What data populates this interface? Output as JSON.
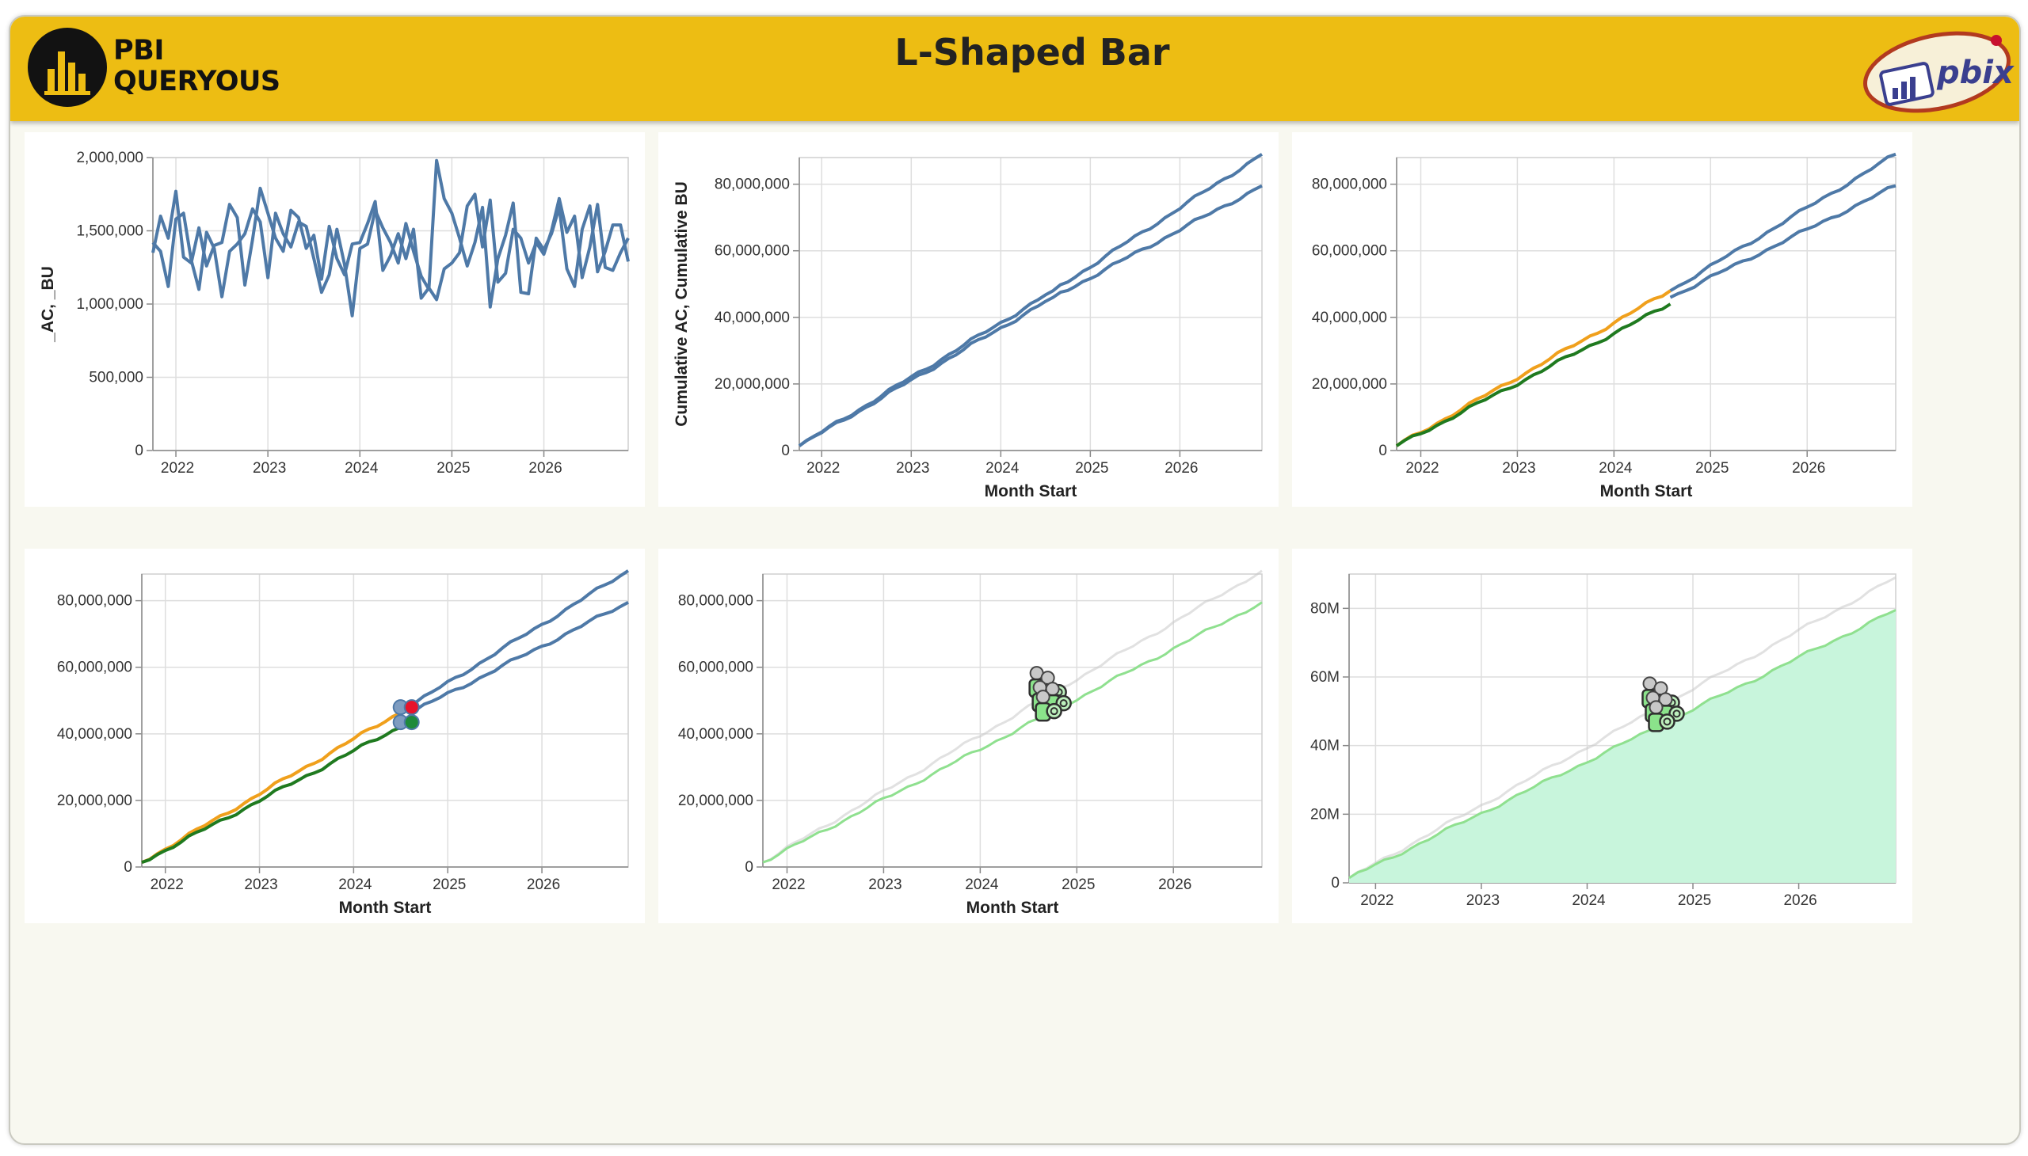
{
  "header": {
    "logo_line1": "PBI",
    "logo_line2": "QUERYOUS",
    "title": "L-Shaped Bar",
    "brand_logo_text": "pbix"
  },
  "colors": {
    "banner": "#edbd13",
    "series_blue": "#4e79a7",
    "actual_orange": "#f0a01c",
    "actual_green": "#1f7a1f",
    "faded_gray": "#c8c8c8",
    "faded_green": "#8fe08f",
    "area_fill": "#c8f5dc",
    "dot_red": "#e8132b",
    "dot_green": "#1e8a3a"
  },
  "chart_data": [
    {
      "type": "line",
      "ylabel": "_AC, _BU",
      "xlabel": "",
      "x_ticks": [
        "2022",
        "2023",
        "2024",
        "2025",
        "2026"
      ],
      "y_ticks": [
        "0",
        "500,000",
        "1,000,000",
        "1,500,000",
        "2,000,000"
      ],
      "ylim": [
        0,
        2000000
      ],
      "x_start": "2021-10",
      "x_end": "2026-12",
      "series": [
        {
          "values": [
            1420000,
            1360000,
            1120000,
            1580000,
            1620000,
            1300000,
            1100000,
            1490000,
            1380000,
            1050000,
            1360000,
            1410000,
            1480000,
            1650000,
            1560000,
            1180000,
            1620000,
            1480000,
            1390000,
            1560000,
            1530000,
            1310000,
            1080000,
            1200000,
            1510000,
            1270000,
            920000,
            1380000,
            1410000,
            1640000,
            1520000,
            1420000,
            1280000,
            1550000,
            1360000,
            1190000,
            1100000,
            1980000,
            1720000,
            1620000,
            1450000,
            1260000,
            1420000,
            1660000,
            980000,
            1310000,
            1470000,
            1690000,
            1080000,
            1070000,
            1450000,
            1370000,
            1480000,
            1660000,
            1240000,
            1120000,
            1510000,
            1670000,
            1220000,
            1360000,
            1540000,
            1540000,
            1290000
          ]
        },
        {
          "values": [
            1350000,
            1600000,
            1450000,
            1770000,
            1320000,
            1280000,
            1520000,
            1260000,
            1400000,
            1420000,
            1680000,
            1590000,
            1130000,
            1440000,
            1790000,
            1620000,
            1450000,
            1360000,
            1640000,
            1590000,
            1380000,
            1470000,
            1170000,
            1530000,
            1310000,
            1200000,
            1410000,
            1420000,
            1550000,
            1700000,
            1230000,
            1330000,
            1480000,
            1310000,
            1510000,
            1040000,
            1110000,
            1030000,
            1240000,
            1280000,
            1350000,
            1670000,
            1750000,
            1390000,
            1710000,
            1150000,
            1210000,
            1510000,
            1450000,
            1280000,
            1420000,
            1340000,
            1500000,
            1720000,
            1490000,
            1600000,
            1180000,
            1390000,
            1680000,
            1250000,
            1230000,
            1350000,
            1450000
          ]
        }
      ]
    },
    {
      "type": "line",
      "ylabel": "Cumulative AC, Cumulative BU",
      "xlabel": "Month Start",
      "x_ticks": [
        "2022",
        "2023",
        "2024",
        "2025",
        "2026"
      ],
      "y_ticks": [
        "0",
        "20,000,000",
        "40,000,000",
        "60,000,000",
        "80,000,000"
      ],
      "ylim": [
        0,
        88000000
      ],
      "x_start": "2021-10",
      "x_end": "2026-12",
      "series": [
        {
          "points": [
            [
              "2021-10",
              1400000
            ],
            [
              "2024-08",
              48000000
            ],
            [
              "2026-12",
              89000000
            ]
          ]
        },
        {
          "points": [
            [
              "2021-10",
              1400000
            ],
            [
              "2024-08",
              46000000
            ],
            [
              "2026-12",
              79500000
            ]
          ]
        }
      ]
    },
    {
      "type": "line",
      "ylabel": "",
      "xlabel": "Month Start",
      "x_ticks": [
        "2022",
        "2023",
        "2024",
        "2025",
        "2026"
      ],
      "y_ticks": [
        "0",
        "20,000,000",
        "40,000,000",
        "60,000,000",
        "80,000,000"
      ],
      "ylim": [
        0,
        88000000
      ],
      "x_start": "2021-10",
      "x_end": "2026-12",
      "series": [
        {
          "points": [
            [
              "2024-08",
              48000000
            ],
            [
              "2026-12",
              89000000
            ]
          ]
        },
        {
          "points": [
            [
              "2024-08",
              46000000
            ],
            [
              "2026-12",
              79500000
            ]
          ]
        },
        {
          "points": [
            [
              "2021-10",
              1400000
            ],
            [
              "2024-08",
              48000000
            ]
          ]
        },
        {
          "points": [
            [
              "2021-10",
              1400000
            ],
            [
              "2024-08",
              44000000
            ]
          ]
        }
      ]
    },
    {
      "type": "line",
      "ylabel": "",
      "xlabel": "Month Start",
      "x_ticks": [
        "2022",
        "2023",
        "2024",
        "2025",
        "2026"
      ],
      "y_ticks": [
        "0",
        "20,000,000",
        "40,000,000",
        "60,000,000",
        "80,000,000"
      ],
      "ylim": [
        0,
        88000000
      ],
      "x_start": "2021-10",
      "x_end": "2026-12",
      "series": [
        {
          "points": [
            [
              "2024-08",
              48000000
            ],
            [
              "2026-12",
              89000000
            ]
          ]
        },
        {
          "points": [
            [
              "2024-08",
              46000000
            ],
            [
              "2026-12",
              79500000
            ]
          ]
        },
        {
          "points": [
            [
              "2021-10",
              1400000
            ],
            [
              "2024-08",
              48000000
            ]
          ]
        },
        {
          "points": [
            [
              "2021-10",
              1400000
            ],
            [
              "2024-08",
              43500000
            ]
          ]
        }
      ],
      "markers": [
        {
          "x": "2024-08",
          "y": 48000000,
          "color": "dot_red"
        },
        {
          "x": "2024-08",
          "y": 43500000,
          "color": "dot_green"
        }
      ]
    },
    {
      "type": "line",
      "ylabel": "",
      "xlabel": "Month Start",
      "x_ticks": [
        "2022",
        "2023",
        "2024",
        "2025",
        "2026"
      ],
      "y_ticks": [
        "0",
        "20,000,000",
        "40,000,000",
        "60,000,000",
        "80,000,000"
      ],
      "ylim": [
        0,
        88000000
      ],
      "x_start": "2021-10",
      "x_end": "2026-12",
      "series": [
        {
          "points": [
            [
              "2021-10",
              1400000
            ],
            [
              "2026-12",
              89000000
            ]
          ]
        },
        {
          "points": [
            [
              "2021-10",
              1400000
            ],
            [
              "2026-12",
              79500000
            ]
          ]
        }
      ],
      "annotation": {
        "x": "2024-09",
        "y": 53000000
      }
    },
    {
      "type": "area",
      "ylabel": "",
      "xlabel": "",
      "x_ticks": [
        "2022",
        "2023",
        "2024",
        "2025",
        "2026"
      ],
      "y_ticks": [
        "0",
        "20M",
        "40M",
        "60M",
        "80M"
      ],
      "ylim": [
        0,
        90000000
      ],
      "x_start": "2021-10",
      "x_end": "2026-12",
      "series": [
        {
          "points": [
            [
              "2021-10",
              1400000
            ],
            [
              "2026-12",
              89000000
            ]
          ]
        },
        {
          "points": [
            [
              "2021-10",
              1400000
            ],
            [
              "2026-12",
              79500000
            ]
          ]
        }
      ],
      "annotation": {
        "x": "2024-09",
        "y": 53000000
      }
    }
  ]
}
